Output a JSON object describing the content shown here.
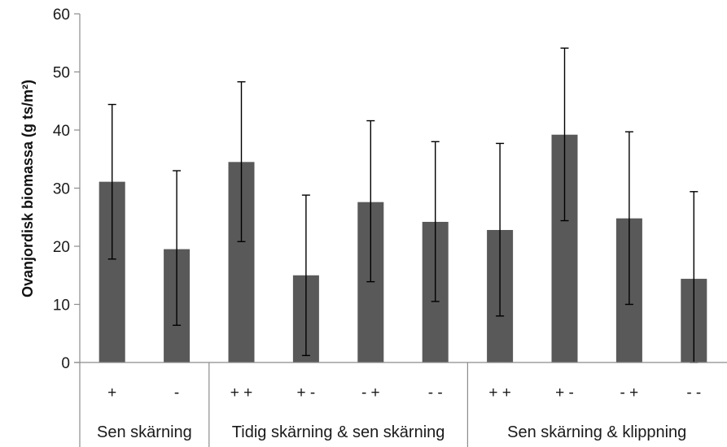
{
  "chart_data": {
    "type": "bar",
    "title": "",
    "xlabel": "",
    "ylabel": "Ovanjordisk biomassa (g ts/m²)",
    "ylim": [
      0,
      60
    ],
    "yticks": [
      0,
      10,
      20,
      30,
      40,
      50,
      60
    ],
    "grid": false,
    "legend": "none",
    "bar_color": "#595959",
    "categories": [
      "+",
      "-",
      "+ +",
      "+ -",
      "- +",
      "- -",
      "+ +",
      "+ -",
      "- +",
      "- -"
    ],
    "groups": [
      {
        "label": "Sen skärning",
        "count": 2
      },
      {
        "label": "Tidig skärning & sen skärning",
        "count": 4
      },
      {
        "label": "Sen skärning & klippning",
        "count": 4
      }
    ],
    "values": [
      31.1,
      19.5,
      34.5,
      15.0,
      27.6,
      24.2,
      22.8,
      39.2,
      24.8,
      14.4
    ],
    "error_low": [
      17.8,
      6.4,
      20.8,
      1.2,
      13.9,
      10.5,
      8.0,
      24.4,
      10.0,
      0.0
    ],
    "error_high": [
      44.4,
      33.0,
      48.3,
      28.8,
      41.6,
      38.0,
      37.7,
      54.1,
      39.7,
      29.4
    ]
  }
}
